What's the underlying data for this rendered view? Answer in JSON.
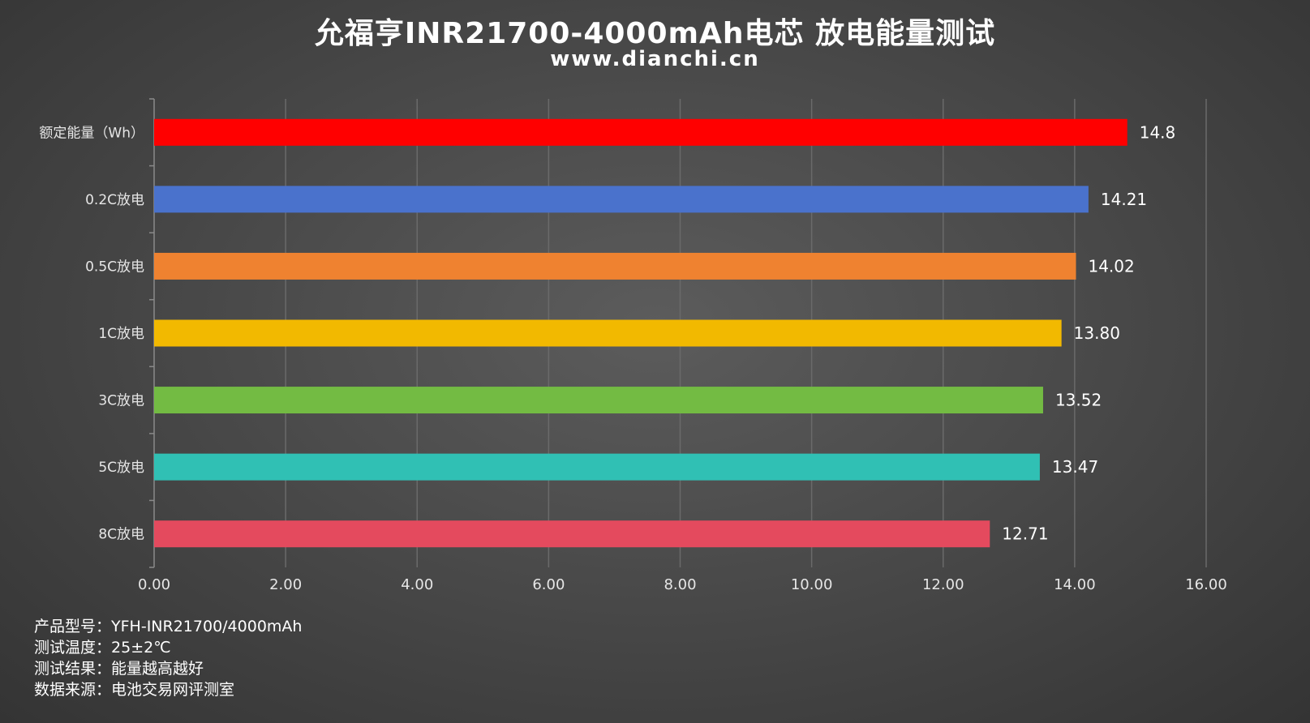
{
  "header": {
    "title": "允福亨INR21700-4000mAh电芯 放电能量测试",
    "subtitle": "www.dianchi.cn"
  },
  "notes": [
    {
      "label": "产品型号：",
      "value": "YFH-INR21700/4000mAh"
    },
    {
      "label": "测试温度：",
      "value": "25±2℃"
    },
    {
      "label": "测试结果：",
      "value": "能量越高越好"
    },
    {
      "label": "数据来源：",
      "value": "电池交易网评测室"
    }
  ],
  "chart_data": {
    "type": "bar",
    "orientation": "horizontal",
    "categories": [
      "额定能量（Wh）",
      "0.2C放电",
      "0.5C放电",
      "1C放电",
      "3C放电",
      "5C放电",
      "8C放电"
    ],
    "values": [
      14.8,
      14.21,
      14.02,
      13.8,
      13.52,
      13.47,
      12.71
    ],
    "value_labels": [
      "14.8",
      "14.21",
      "14.02",
      "13.80",
      "13.52",
      "13.47",
      "12.71"
    ],
    "colors": [
      "#ff0000",
      "#4a72cc",
      "#ef8230",
      "#f2b900",
      "#73bb43",
      "#30c0b4",
      "#e44a5e"
    ],
    "xlim": [
      0,
      16
    ],
    "xticks": [
      0,
      2,
      4,
      6,
      8,
      10,
      12,
      14,
      16
    ],
    "xtick_labels": [
      "0.00",
      "2.00",
      "4.00",
      "6.00",
      "8.00",
      "10.00",
      "12.00",
      "14.00",
      "16.00"
    ],
    "grid": true,
    "legend": "none"
  }
}
